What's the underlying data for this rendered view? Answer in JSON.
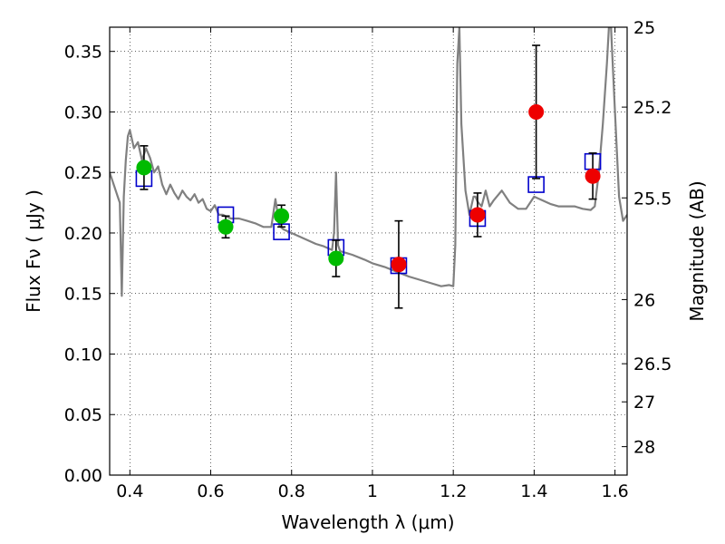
{
  "chart_data": {
    "type": "scatter",
    "xlabel": "Wavelength  λ (μm)",
    "ylabel": "Flux  Fν  ( μJy )",
    "ylabel_right": "Magnitude (AB)",
    "xlim": [
      0.35,
      1.63
    ],
    "ylim": [
      0.0,
      0.37
    ],
    "grid": true,
    "grid_style": "dotted",
    "x_ticks": [
      0.4,
      0.6,
      0.8,
      1.0,
      1.2,
      1.4,
      1.6
    ],
    "x_tick_labels": [
      "0.4",
      "0.6",
      "0.8",
      "1",
      "1.2",
      "1.4",
      "1.6"
    ],
    "y_ticks": [
      0.0,
      0.05,
      0.1,
      0.15,
      0.2,
      0.25,
      0.3,
      0.35
    ],
    "y_tick_labels": [
      "0.00",
      "0.05",
      "0.10",
      "0.15",
      "0.20",
      "0.25",
      "0.30",
      "0.35"
    ],
    "right_ticks": [
      {
        "label": "25",
        "flux": 0.3715
      },
      {
        "label": "25.2",
        "flux": 0.304
      },
      {
        "label": "25.5",
        "flux": 0.229
      },
      {
        "label": "26",
        "flux": 0.145
      },
      {
        "label": "26.5",
        "flux": 0.092
      },
      {
        "label": "27",
        "flux": 0.0605
      },
      {
        "label": "28",
        "flux": 0.0235
      }
    ],
    "colors": {
      "model": "#808080",
      "green_points": "#00bb00",
      "red_points": "#ee0000",
      "model_boxes": "#0000cc",
      "errorbar": "#000000"
    },
    "model_spectrum": {
      "x": [
        0.35,
        0.36,
        0.37,
        0.375,
        0.38,
        0.385,
        0.39,
        0.395,
        0.4,
        0.41,
        0.42,
        0.43,
        0.44,
        0.45,
        0.46,
        0.47,
        0.48,
        0.49,
        0.5,
        0.51,
        0.52,
        0.53,
        0.54,
        0.55,
        0.56,
        0.57,
        0.58,
        0.59,
        0.6,
        0.61,
        0.62,
        0.63,
        0.65,
        0.67,
        0.69,
        0.71,
        0.73,
        0.75,
        0.76,
        0.77,
        0.78,
        0.8,
        0.82,
        0.84,
        0.86,
        0.88,
        0.9,
        0.905,
        0.91,
        0.915,
        0.92,
        0.95,
        0.98,
        1.0,
        1.03,
        1.06,
        1.09,
        1.12,
        1.15,
        1.17,
        1.19,
        1.2,
        1.205,
        1.21,
        1.215,
        1.22,
        1.23,
        1.24,
        1.25,
        1.255,
        1.26,
        1.27,
        1.28,
        1.29,
        1.3,
        1.32,
        1.34,
        1.36,
        1.38,
        1.4,
        1.42,
        1.44,
        1.46,
        1.48,
        1.5,
        1.52,
        1.54,
        1.55,
        1.56,
        1.57,
        1.58,
        1.585,
        1.59,
        1.6,
        1.61,
        1.62,
        1.63
      ],
      "flux": [
        0.25,
        0.24,
        0.23,
        0.225,
        0.148,
        0.23,
        0.26,
        0.28,
        0.285,
        0.27,
        0.275,
        0.26,
        0.27,
        0.262,
        0.25,
        0.255,
        0.24,
        0.232,
        0.24,
        0.233,
        0.228,
        0.235,
        0.23,
        0.227,
        0.232,
        0.225,
        0.228,
        0.22,
        0.218,
        0.223,
        0.215,
        0.215,
        0.212,
        0.212,
        0.21,
        0.208,
        0.205,
        0.205,
        0.228,
        0.206,
        0.203,
        0.2,
        0.197,
        0.194,
        0.191,
        0.189,
        0.186,
        0.2,
        0.25,
        0.19,
        0.185,
        0.182,
        0.178,
        0.175,
        0.172,
        0.168,
        0.164,
        0.161,
        0.158,
        0.156,
        0.157,
        0.156,
        0.19,
        0.34,
        0.37,
        0.29,
        0.235,
        0.215,
        0.23,
        0.23,
        0.226,
        0.222,
        0.235,
        0.222,
        0.227,
        0.235,
        0.225,
        0.22,
        0.22,
        0.23,
        0.227,
        0.224,
        0.222,
        0.222,
        0.222,
        0.22,
        0.219,
        0.222,
        0.25,
        0.29,
        0.34,
        0.37,
        0.37,
        0.3,
        0.23,
        0.21,
        0.215
      ]
    },
    "points": [
      {
        "x": 0.435,
        "y": 0.254,
        "err": 0.018,
        "color": "green",
        "model": 0.245
      },
      {
        "x": 0.637,
        "y": 0.205,
        "err": 0.009,
        "color": "green",
        "model": 0.215
      },
      {
        "x": 0.775,
        "y": 0.214,
        "err": 0.009,
        "color": "green",
        "model": 0.201
      },
      {
        "x": 0.91,
        "y": 0.179,
        "err": 0.015,
        "color": "green",
        "model": 0.188
      },
      {
        "x": 1.065,
        "y": 0.174,
        "err": 0.036,
        "color": "red",
        "model": 0.173
      },
      {
        "x": 1.26,
        "y": 0.215,
        "err": 0.018,
        "color": "red",
        "model": 0.212
      },
      {
        "x": 1.405,
        "y": 0.3,
        "err": 0.055,
        "color": "red",
        "model": 0.24
      },
      {
        "x": 1.545,
        "y": 0.247,
        "err": 0.019,
        "color": "red",
        "model": 0.259
      }
    ]
  }
}
